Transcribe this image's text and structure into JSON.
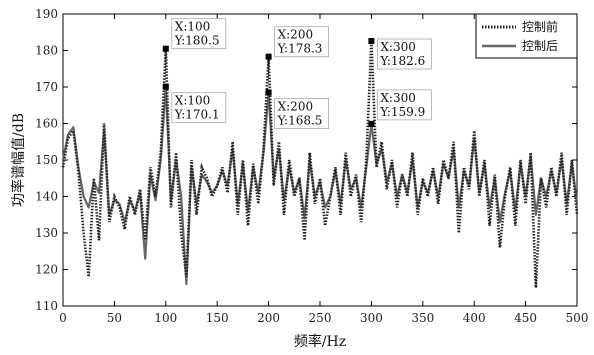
{
  "chart_data": {
    "type": "line",
    "xlabel": "频率/Hz",
    "ylabel": "功率谱幅值/dB",
    "xlim": [
      0,
      500
    ],
    "ylim": [
      110,
      190
    ],
    "xticks": [
      0,
      50,
      100,
      150,
      200,
      250,
      300,
      350,
      400,
      450,
      500
    ],
    "yticks": [
      110,
      120,
      130,
      140,
      150,
      160,
      170,
      180,
      190
    ],
    "grid": false,
    "legend_position": "top-right",
    "x": [
      0,
      5,
      10,
      15,
      20,
      25,
      30,
      35,
      40,
      45,
      50,
      55,
      60,
      65,
      70,
      75,
      80,
      85,
      90,
      95,
      100,
      105,
      110,
      115,
      120,
      125,
      130,
      135,
      140,
      145,
      150,
      155,
      160,
      165,
      170,
      175,
      180,
      185,
      190,
      195,
      200,
      205,
      210,
      215,
      220,
      225,
      230,
      235,
      240,
      245,
      250,
      255,
      260,
      265,
      270,
      275,
      280,
      285,
      290,
      295,
      300,
      305,
      310,
      315,
      320,
      325,
      330,
      335,
      340,
      345,
      350,
      355,
      360,
      365,
      370,
      375,
      380,
      385,
      390,
      395,
      400,
      405,
      410,
      415,
      420,
      425,
      430,
      435,
      440,
      445,
      450,
      455,
      460,
      465,
      470,
      475,
      480,
      485,
      490,
      495,
      500
    ],
    "series": [
      {
        "name": "控制前",
        "style": "dotted",
        "values": [
          148,
          156,
          158,
          147,
          130,
          118,
          145,
          128,
          160,
          133,
          140,
          137,
          131,
          140,
          135,
          142,
          128,
          148,
          140,
          152,
          180.5,
          137,
          152,
          130,
          118,
          150,
          135,
          148,
          145,
          140,
          143,
          148,
          141,
          155,
          135,
          150,
          132,
          149,
          138,
          153,
          178.3,
          143,
          155,
          135,
          150,
          140,
          145,
          128,
          152,
          138,
          145,
          132,
          140,
          148,
          135,
          152,
          140,
          146,
          133,
          150,
          182.6,
          148,
          155,
          142,
          150,
          137,
          146,
          140,
          152,
          135,
          145,
          140,
          148,
          138,
          150,
          145,
          155,
          130,
          148,
          142,
          158,
          140,
          150,
          132,
          146,
          126,
          140,
          148,
          132,
          150,
          138,
          152,
          115,
          145,
          137,
          148,
          140,
          152,
          135,
          150,
          135
        ]
      },
      {
        "name": "控制后",
        "style": "solid",
        "values": [
          150,
          157,
          159,
          148,
          140,
          137,
          144,
          141,
          158,
          135,
          139,
          138,
          133,
          139,
          136,
          141,
          123,
          146,
          139,
          150,
          170.1,
          139,
          150,
          140,
          116,
          148,
          138,
          146,
          144,
          141,
          143,
          147,
          143,
          153,
          138,
          149,
          136,
          148,
          141,
          152,
          168.5,
          145,
          153,
          139,
          148,
          141,
          145,
          134,
          150,
          140,
          144,
          137,
          140,
          147,
          138,
          150,
          142,
          145,
          137,
          148,
          159.9,
          149,
          153,
          144,
          149,
          140,
          146,
          141,
          150,
          137,
          144,
          141,
          147,
          140,
          149,
          145,
          153,
          137,
          147,
          143,
          156,
          141,
          149,
          137,
          145,
          133,
          141,
          147,
          136,
          149,
          140,
          151,
          135,
          145,
          140,
          147,
          141,
          150,
          138,
          149,
          138
        ]
      }
    ],
    "annotations": [
      {
        "x_label": "X:100",
        "y_label": "Y:180.5",
        "x": 100,
        "y": 180.5
      },
      {
        "x_label": "X:100",
        "y_label": "Y:170.1",
        "x": 100,
        "y": 170.1
      },
      {
        "x_label": "X:200",
        "y_label": "Y:178.3",
        "x": 200,
        "y": 178.3
      },
      {
        "x_label": "X:200",
        "y_label": "Y:168.5",
        "x": 200,
        "y": 168.5
      },
      {
        "x_label": "X:300",
        "y_label": "Y:182.6",
        "x": 300,
        "y": 182.6
      },
      {
        "x_label": "X:300",
        "y_label": "Y:159.9",
        "x": 300,
        "y": 159.9
      }
    ]
  }
}
